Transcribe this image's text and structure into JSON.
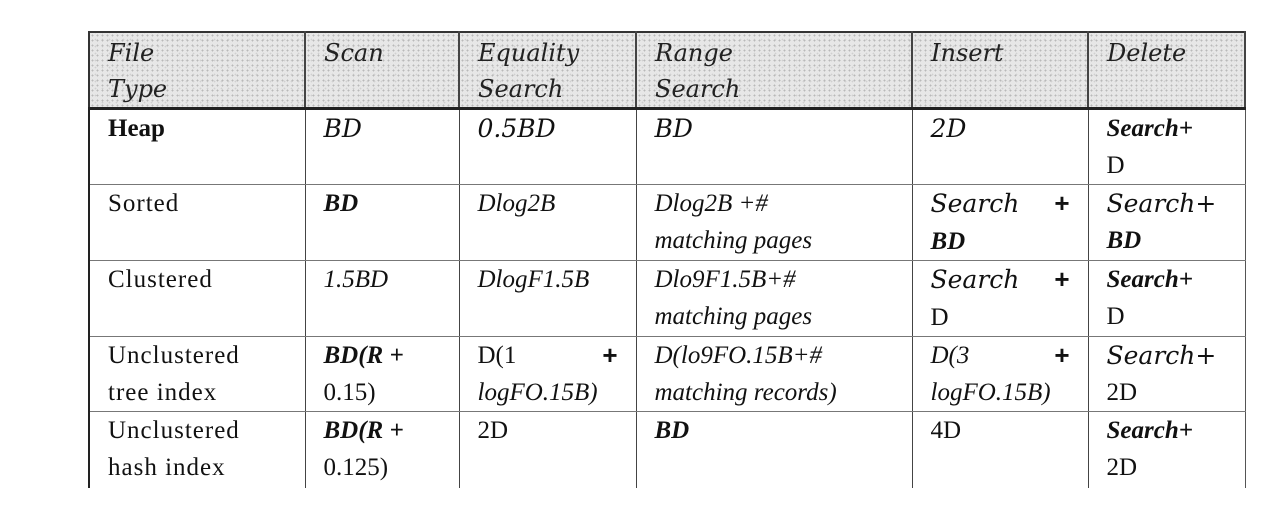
{
  "headers": [
    [
      "File",
      "Type"
    ],
    [
      "Scan"
    ],
    [
      "Equality",
      "Search"
    ],
    [
      "Range",
      "Search"
    ],
    [
      "Insert"
    ],
    [
      "Delete"
    ]
  ],
  "rows": [
    {
      "type": [
        "Heap"
      ],
      "scan": [
        "BD"
      ],
      "equality": [
        "0.5BD"
      ],
      "range": [
        "BD"
      ],
      "insert": [
        "2D"
      ],
      "delete": [
        "Search+",
        "D"
      ]
    },
    {
      "type": [
        "Sorted"
      ],
      "scan": [
        "BD"
      ],
      "equality": [
        "Dlog2B"
      ],
      "range": [
        "Dlog2B +#",
        "matching pages"
      ],
      "insert": [
        "Search",
        "+",
        "BD"
      ],
      "delete": [
        "Search+",
        "BD"
      ]
    },
    {
      "type": [
        "Clustered"
      ],
      "scan": [
        "1.5BD"
      ],
      "equality": [
        "DlogF1.5B"
      ],
      "range": [
        "Dlo9F1.5B+#",
        "matching pages"
      ],
      "insert": [
        "Search",
        "+",
        "D"
      ],
      "delete": [
        "Search+",
        "D"
      ]
    },
    {
      "type": [
        "Unclustered",
        "tree index"
      ],
      "scan": [
        "BD(R +",
        "0.15)"
      ],
      "equality": [
        "D(1",
        "+",
        "logFO.15B)"
      ],
      "range": [
        "D(lo9FO.15B+#",
        "matching records)"
      ],
      "insert": [
        "D(3",
        "+",
        "logFO.15B)"
      ],
      "delete": [
        "Search+",
        "2D"
      ]
    },
    {
      "type": [
        "Unclustered",
        "hash index"
      ],
      "scan": [
        "BD(R +",
        "0.125)"
      ],
      "equality": [
        "2D"
      ],
      "range": [
        "BD"
      ],
      "insert": [
        "4D"
      ],
      "delete": [
        "Search+",
        "2D"
      ]
    }
  ]
}
